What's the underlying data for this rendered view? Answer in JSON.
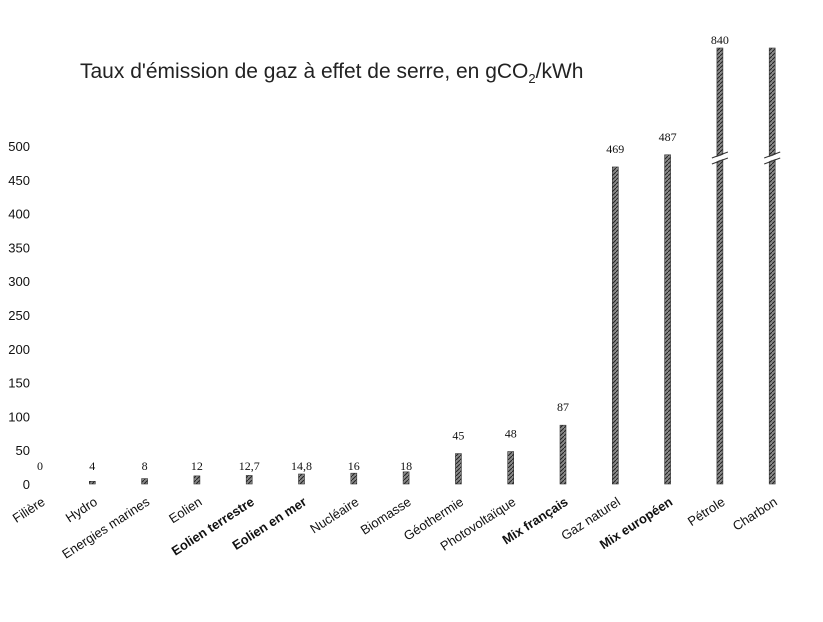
{
  "title_prefix": "Taux d'émission de gaz à effet de serre, en gCO",
  "title_sub": "2",
  "title_suffix": "/kWh",
  "chart_data": {
    "type": "bar",
    "title": "Taux d'émission de gaz à effet de serre, en gCO2/kWh",
    "categories": [
      "Filière",
      "Hydro",
      "Energies marines",
      "Eolien",
      "Eolien terrestre",
      "Eolien en mer",
      "Nucléaire",
      "Biomasse",
      "Géothermie",
      "Photovoltaïque",
      "Mix français",
      "Gaz naturel",
      "Mix européen",
      "Pétrole",
      "Charbon"
    ],
    "bold_categories": [
      "Eolien terrestre",
      "Eolien en mer",
      "Mix français",
      "Mix européen"
    ],
    "values": [
      0,
      4,
      8,
      12,
      12.7,
      14.8,
      16,
      18,
      45,
      48,
      87,
      469,
      487,
      840,
      1000
    ],
    "value_labels": [
      "0",
      "4",
      "8",
      "12",
      "12,7",
      "14,8",
      "16",
      "18",
      "45",
      "48",
      "87",
      "469",
      "487",
      "840",
      ""
    ],
    "y_ticks": [
      "0",
      "50",
      "100",
      "150",
      "200",
      "250",
      "300",
      "350",
      "400",
      "450",
      "500"
    ],
    "ylim": [
      0,
      500
    ],
    "axis_break": true,
    "bar_color": "#555555",
    "grid": false,
    "legend": "none"
  }
}
